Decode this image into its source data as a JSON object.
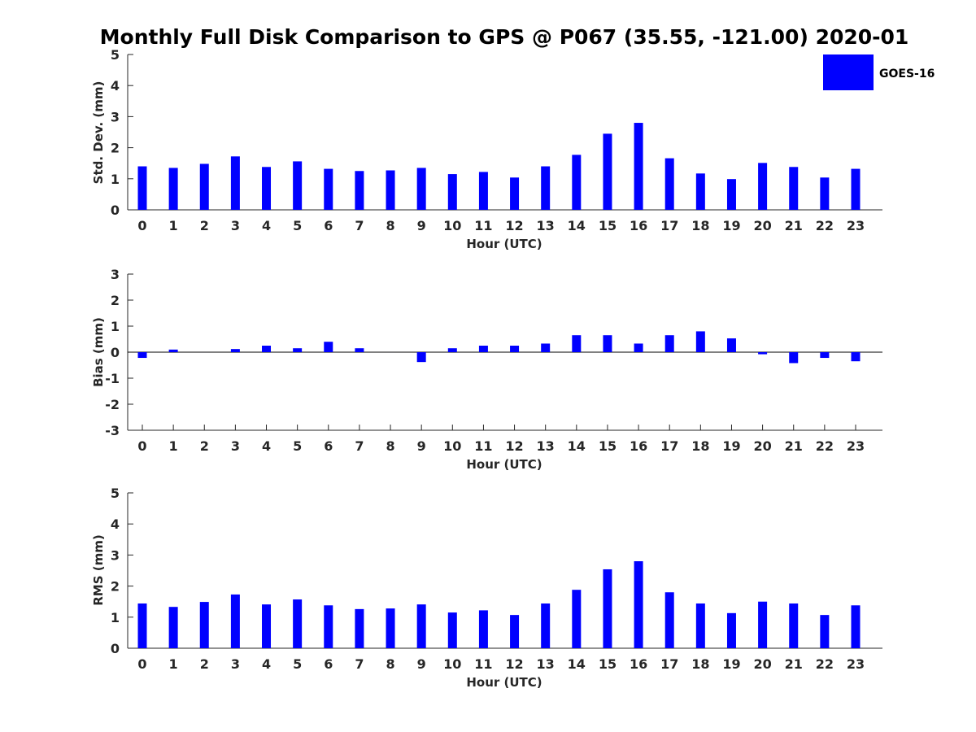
{
  "title": "Monthly Full Disk Comparison to GPS @ P067 (35.55, -121.00) 2020-01",
  "colors": {
    "bar": "#0000ff",
    "axis": "#262626",
    "zero_line": "#000000"
  },
  "legend": {
    "label": "GOES-16",
    "placement": "top-right"
  },
  "chart_data": [
    {
      "type": "bar",
      "series": [
        {
          "name": "GOES-16",
          "values": [
            1.4,
            1.35,
            1.48,
            1.72,
            1.38,
            1.56,
            1.32,
            1.25,
            1.27,
            1.35,
            1.15,
            1.22,
            1.04,
            1.4,
            1.77,
            2.45,
            2.8,
            1.66,
            1.17,
            0.99,
            1.51,
            1.38,
            1.04,
            1.32
          ]
        }
      ],
      "categories": [
        "0",
        "1",
        "2",
        "3",
        "4",
        "5",
        "6",
        "7",
        "8",
        "9",
        "10",
        "11",
        "12",
        "13",
        "14",
        "15",
        "16",
        "17",
        "18",
        "19",
        "20",
        "21",
        "22",
        "23"
      ],
      "xlabel": "Hour (UTC)",
      "ylabel": "Std. Dev. (mm)",
      "ylim": [
        0,
        5
      ],
      "yticks": [
        "0",
        "1",
        "2",
        "3",
        "4",
        "5"
      ],
      "grid": false
    },
    {
      "type": "bar",
      "series": [
        {
          "name": "GOES-16",
          "values": [
            -0.22,
            0.1,
            0.0,
            0.12,
            0.25,
            0.15,
            0.4,
            0.15,
            0.0,
            -0.38,
            0.15,
            0.25,
            0.25,
            0.33,
            0.65,
            0.65,
            0.33,
            0.65,
            0.8,
            0.53,
            -0.08,
            -0.42,
            -0.22,
            -0.35
          ]
        }
      ],
      "categories": [
        "0",
        "1",
        "2",
        "3",
        "4",
        "5",
        "6",
        "7",
        "8",
        "9",
        "10",
        "11",
        "12",
        "13",
        "14",
        "15",
        "16",
        "17",
        "18",
        "19",
        "20",
        "21",
        "22",
        "23"
      ],
      "xlabel": "Hour (UTC)",
      "ylabel": "Bias (mm)",
      "ylim": [
        -3,
        3
      ],
      "yticks": [
        "-3",
        "-2",
        "-1",
        "0",
        "1",
        "2",
        "3"
      ],
      "grid": false
    },
    {
      "type": "bar",
      "series": [
        {
          "name": "GOES-16",
          "values": [
            1.44,
            1.33,
            1.49,
            1.73,
            1.41,
            1.57,
            1.38,
            1.26,
            1.28,
            1.41,
            1.15,
            1.22,
            1.07,
            1.44,
            1.88,
            2.54,
            2.8,
            1.8,
            1.44,
            1.13,
            1.5,
            1.44,
            1.07,
            1.38
          ]
        }
      ],
      "categories": [
        "0",
        "1",
        "2",
        "3",
        "4",
        "5",
        "6",
        "7",
        "8",
        "9",
        "10",
        "11",
        "12",
        "13",
        "14",
        "15",
        "16",
        "17",
        "18",
        "19",
        "20",
        "21",
        "22",
        "23"
      ],
      "xlabel": "Hour (UTC)",
      "ylabel": "RMS (mm)",
      "ylim": [
        0,
        5
      ],
      "yticks": [
        "0",
        "1",
        "2",
        "3",
        "4",
        "5"
      ],
      "grid": false
    }
  ]
}
